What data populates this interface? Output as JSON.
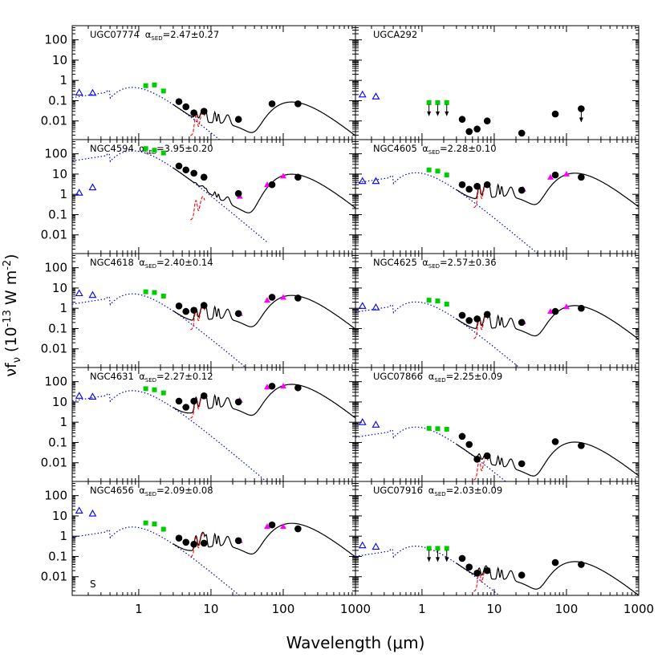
{
  "figure": {
    "ylabel_main": "νf",
    "ylabel_sub": "ν",
    "ylabel_rest": " (10",
    "ylabel_exp": "-13",
    "ylabel_tail": " W m",
    "ylabel_exp2": "-2",
    "ylabel_close": ")",
    "xlabel": "Wavelength (μm)"
  },
  "chart_data": {
    "type": "scatter",
    "x_scale": "log",
    "y_scale": "log",
    "xlim": [
      0.12,
      1000
    ],
    "ylim": [
      0.0012,
      500
    ],
    "x_ticks": [
      {
        "value": 1,
        "label": "1"
      },
      {
        "value": 10,
        "label": "10"
      },
      {
        "value": 100,
        "label": "100"
      },
      {
        "value": 1000,
        "label": "1000"
      }
    ],
    "y_ticks": [
      {
        "value": 100,
        "label": "100"
      },
      {
        "value": 10,
        "label": "10"
      },
      {
        "value": 1,
        "label": "1"
      },
      {
        "value": 0.1,
        "label": "0.1"
      },
      {
        "value": 0.01,
        "label": "0.01"
      }
    ],
    "colors": {
      "uv": "#0000ff",
      "nir": "#00cc00",
      "iras": "#ff00ff",
      "pah": "#ff0000",
      "stellar": "#0000cc",
      "model": "#000000"
    },
    "panels": [
      {
        "name": "UGC07774",
        "alpha": "2.47±0.27",
        "bottom_label": "",
        "uv": [
          [
            0.15,
            0.25
          ],
          [
            0.23,
            0.24
          ]
        ],
        "nir": [
          [
            1.25,
            0.55
          ],
          [
            1.65,
            0.6
          ],
          [
            2.2,
            0.3
          ]
        ],
        "nir_upper": [],
        "iras": [],
        "black": [
          [
            3.6,
            0.09
          ],
          [
            4.5,
            0.05
          ],
          [
            5.8,
            0.025
          ],
          [
            8,
            0.03
          ],
          [
            24,
            0.012
          ],
          [
            70,
            0.07
          ],
          [
            160,
            0.07
          ]
        ],
        "black_upper": [],
        "star_amp": 0.35,
        "cold_amp": 0.07,
        "pah_amp": 0.012,
        "no_model": false
      },
      {
        "name": "UGCA292",
        "alpha": "",
        "bottom_label": "",
        "uv": [
          [
            0.15,
            0.2
          ],
          [
            0.23,
            0.16
          ]
        ],
        "nir": [],
        "nir_upper": [
          [
            1.25,
            0.08
          ],
          [
            1.65,
            0.08
          ],
          [
            2.2,
            0.08
          ]
        ],
        "iras": [],
        "black": [
          [
            3.6,
            0.012
          ],
          [
            4.5,
            0.003
          ],
          [
            5.8,
            0.004
          ],
          [
            8,
            0.01
          ],
          [
            24,
            0.0025
          ],
          [
            70,
            0.022
          ]
        ],
        "black_upper": [
          [
            160,
            0.04
          ]
        ],
        "star_amp": 0,
        "cold_amp": 0,
        "pah_amp": 0,
        "no_model": true
      },
      {
        "name": "NGC4594",
        "alpha": "3.95±0.20",
        "bottom_label": "",
        "uv": [
          [
            0.15,
            1.2
          ],
          [
            0.23,
            2.2
          ]
        ],
        "nir": [
          [
            1.25,
            180
          ],
          [
            1.65,
            150
          ],
          [
            2.2,
            110
          ]
        ],
        "nir_upper": [],
        "iras": [
          [
            25,
            0.8
          ],
          [
            60,
            3
          ],
          [
            100,
            8
          ]
        ],
        "black": [
          [
            3.6,
            25
          ],
          [
            4.5,
            16
          ],
          [
            5.8,
            11
          ],
          [
            8,
            7
          ],
          [
            24,
            1.1
          ],
          [
            70,
            3
          ],
          [
            160,
            7
          ]
        ],
        "black_upper": [],
        "star_amp": 110,
        "cold_amp": 8,
        "pah_amp": 0.35,
        "no_model": false
      },
      {
        "name": "NGC4605",
        "alpha": "2.28±0.10",
        "bottom_label": "",
        "uv": [
          [
            0.15,
            4.5
          ],
          [
            0.23,
            4.5
          ]
        ],
        "nir": [
          [
            1.25,
            16
          ],
          [
            1.65,
            14
          ],
          [
            2.2,
            9
          ]
        ],
        "nir_upper": [],
        "iras": [
          [
            25,
            1.8
          ],
          [
            60,
            7
          ],
          [
            100,
            10
          ]
        ],
        "black": [
          [
            3.6,
            3
          ],
          [
            4.5,
            1.8
          ],
          [
            5.8,
            2.5
          ],
          [
            8,
            3
          ],
          [
            24,
            1.6
          ],
          [
            70,
            9
          ],
          [
            160,
            7
          ]
        ],
        "black_upper": [],
        "star_amp": 9,
        "cold_amp": 9,
        "pah_amp": 1.4,
        "no_model": false
      },
      {
        "name": "NGC4618",
        "alpha": "2.40±0.14",
        "bottom_label": "",
        "uv": [
          [
            0.15,
            5.5
          ],
          [
            0.23,
            4.5
          ]
        ],
        "nir": [
          [
            1.25,
            6.5
          ],
          [
            1.65,
            6
          ],
          [
            2.2,
            4
          ]
        ],
        "nir_upper": [],
        "iras": [
          [
            25,
            0.55
          ],
          [
            60,
            2.5
          ],
          [
            100,
            3.5
          ]
        ],
        "black": [
          [
            3.6,
            1.3
          ],
          [
            4.5,
            0.7
          ],
          [
            5.8,
            0.8
          ],
          [
            8,
            1.4
          ],
          [
            24,
            0.55
          ],
          [
            70,
            3.5
          ],
          [
            160,
            3.2
          ]
        ],
        "black_upper": [],
        "star_amp": 4,
        "cold_amp": 3.5,
        "pah_amp": 0.55,
        "no_model": false
      },
      {
        "name": "NGC4625",
        "alpha": "2.57±0.36",
        "bottom_label": "",
        "uv": [
          [
            0.15,
            1.3
          ],
          [
            0.23,
            1.1
          ]
        ],
        "nir": [
          [
            1.25,
            2.5
          ],
          [
            1.65,
            2.3
          ],
          [
            2.2,
            1.6
          ]
        ],
        "nir_upper": [],
        "iras": [
          [
            25,
            0.22
          ],
          [
            60,
            0.7
          ],
          [
            100,
            1.2
          ]
        ],
        "black": [
          [
            3.6,
            0.45
          ],
          [
            4.5,
            0.25
          ],
          [
            5.8,
            0.3
          ],
          [
            8,
            0.5
          ],
          [
            24,
            0.2
          ],
          [
            70,
            0.7
          ],
          [
            160,
            1
          ]
        ],
        "black_upper": [],
        "star_amp": 1.6,
        "cold_amp": 1.1,
        "pah_amp": 0.2,
        "no_model": false
      },
      {
        "name": "NGC4631",
        "alpha": "2.27±0.12",
        "bottom_label": "",
        "uv": [
          [
            0.15,
            20
          ],
          [
            0.23,
            18
          ]
        ],
        "nir": [
          [
            1.25,
            45
          ],
          [
            1.65,
            40
          ],
          [
            2.2,
            28
          ]
        ],
        "nir_upper": [],
        "iras": [
          [
            25,
            12
          ],
          [
            60,
            55
          ],
          [
            100,
            60
          ]
        ],
        "black": [
          [
            3.6,
            11
          ],
          [
            4.5,
            5.5
          ],
          [
            5.8,
            11
          ],
          [
            8,
            20
          ],
          [
            24,
            10
          ],
          [
            70,
            60
          ],
          [
            160,
            50
          ]
        ],
        "black_upper": [],
        "star_amp": 28,
        "cold_amp": 60,
        "pah_amp": 10,
        "no_model": false
      },
      {
        "name": "UGC07866",
        "alpha": "2.25±0.09",
        "bottom_label": "",
        "uv": [
          [
            0.15,
            1
          ],
          [
            0.23,
            0.75
          ]
        ],
        "nir": [
          [
            1.25,
            0.5
          ],
          [
            1.65,
            0.48
          ],
          [
            2.2,
            0.45
          ]
        ],
        "nir_upper": [],
        "iras": [],
        "black": [
          [
            3.6,
            0.2
          ],
          [
            4.5,
            0.08
          ],
          [
            5.8,
            0.015
          ],
          [
            8,
            0.022
          ],
          [
            24,
            0.009
          ],
          [
            70,
            0.11
          ],
          [
            160,
            0.07
          ]
        ],
        "black_upper": [],
        "star_amp": 0.45,
        "cold_amp": 0.085,
        "pah_amp": 0.009,
        "no_model": false
      },
      {
        "name": "NGC4656",
        "alpha": "2.09±0.08",
        "bottom_label": "S",
        "uv": [
          [
            0.15,
            18
          ],
          [
            0.23,
            13
          ]
        ],
        "nir": [
          [
            1.25,
            4.5
          ],
          [
            1.65,
            4
          ],
          [
            2.2,
            2.2
          ]
        ],
        "nir_upper": [],
        "iras": [
          [
            25,
            0.6
          ],
          [
            60,
            3
          ],
          [
            100,
            3
          ]
        ],
        "black": [
          [
            3.6,
            0.8
          ],
          [
            4.5,
            0.5
          ],
          [
            5.8,
            0.4
          ],
          [
            8,
            0.45
          ],
          [
            24,
            0.6
          ],
          [
            70,
            3.6
          ],
          [
            160,
            2.3
          ]
        ],
        "black_upper": [],
        "star_amp": 2.2,
        "cold_amp": 3.5,
        "pah_amp": 0.6,
        "no_model": false
      },
      {
        "name": "UGC07916",
        "alpha": "2.03±0.09",
        "bottom_label": "",
        "uv": [
          [
            0.15,
            0.35
          ],
          [
            0.23,
            0.3
          ]
        ],
        "nir": [],
        "nir_upper": [
          [
            1.25,
            0.25
          ],
          [
            1.65,
            0.25
          ],
          [
            2.2,
            0.25
          ]
        ],
        "iras": [],
        "black": [
          [
            3.6,
            0.08
          ],
          [
            4.5,
            0.03
          ],
          [
            5.8,
            0.015
          ],
          [
            8,
            0.02
          ],
          [
            24,
            0.012
          ],
          [
            70,
            0.05
          ],
          [
            160,
            0.04
          ]
        ],
        "black_upper": [],
        "star_amp": 0.25,
        "cold_amp": 0.045,
        "pah_amp": 0.012,
        "no_model": false
      }
    ]
  }
}
